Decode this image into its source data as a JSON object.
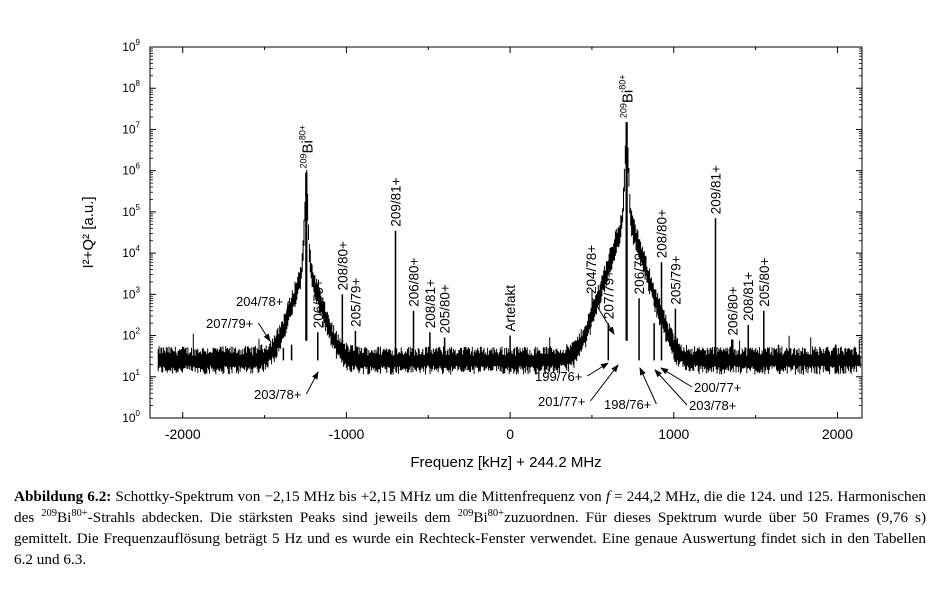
{
  "chart_data": {
    "type": "line",
    "xlabel": "Frequenz [kHz] + 244.2 MHz",
    "ylabel": "I²+Q² [a.u.]",
    "xlim": [
      -2200,
      2150
    ],
    "ylim": [
      1,
      1000000000
    ],
    "yscale": "log",
    "x_ticks": [
      -2000,
      -1000,
      0,
      1000,
      2000
    ],
    "x_tick_labels": [
      "-2000",
      "-1000",
      "0",
      "1000",
      "2000"
    ],
    "y_ticks": [
      1,
      10,
      100,
      1000,
      10000,
      100000,
      1000000,
      10000000,
      100000000,
      1000000000
    ],
    "y_tick_base": "10",
    "y_tick_exponents": [
      "0",
      "1",
      "2",
      "3",
      "4",
      "5",
      "6",
      "7",
      "8",
      "9"
    ],
    "noise_floor": 25,
    "main_peaks": [
      {
        "x": -1245,
        "y": 900000,
        "label_sup": "209",
        "label_main": "Bi",
        "label_sup2": "80+"
      },
      {
        "x": 712,
        "y": 15000000,
        "label_sup": "209",
        "label_main": "Bi",
        "label_sup2": "80+"
      }
    ],
    "peaks": [
      {
        "x": -1385,
        "y": 50
      },
      {
        "x": -1335,
        "y": 60
      },
      {
        "x": -1175,
        "y": 120,
        "label": "206/79+"
      },
      {
        "x": -1025,
        "y": 1000,
        "label": "208/80+"
      },
      {
        "x": -945,
        "y": 130,
        "label": "205/79+"
      },
      {
        "x": -700,
        "y": 35000,
        "label": "209/81+"
      },
      {
        "x": -590,
        "y": 400,
        "label": "206/80+"
      },
      {
        "x": -490,
        "y": 120,
        "label": "208/81+"
      },
      {
        "x": -400,
        "y": 90,
        "label": "205/80+"
      },
      {
        "x": 0,
        "y": 100,
        "label": "Artefakt"
      },
      {
        "x": 600,
        "y": 200,
        "label": "207/79+"
      },
      {
        "x": 788,
        "y": 800,
        "label": "206/79+"
      },
      {
        "x": 880,
        "y": 200
      },
      {
        "x": 925,
        "y": 6000,
        "label": "208/80+"
      },
      {
        "x": 1010,
        "y": 450,
        "label": "205/79+"
      },
      {
        "x": 1255,
        "y": 70000,
        "label": "209/81+"
      },
      {
        "x": 1360,
        "y": 80,
        "label": "206/80+"
      },
      {
        "x": 1455,
        "y": 180,
        "label": "208/81+"
      },
      {
        "x": 1550,
        "y": 400,
        "label": "205/80+"
      },
      {
        "x": 1640,
        "y": 60
      },
      {
        "x": 1990,
        "y": 60
      }
    ],
    "annotations": [
      {
        "text": "204/78+",
        "tx": 236,
        "ty": 306,
        "ax": 283,
        "ay": 338
      },
      {
        "text": "207/79+",
        "tx": 206,
        "ty": 328,
        "ax": 270,
        "ay": 341
      },
      {
        "text": "203/78+",
        "tx": 254,
        "ty": 399,
        "ax": 318,
        "ay": 372
      },
      {
        "text": "204/78+",
        "tx": 596,
        "ty": 266,
        "ax": 614,
        "ay": 334,
        "vertical": true
      },
      {
        "text": "199/76+",
        "tx": 535,
        "ty": 381,
        "ax": 608,
        "ay": 363
      },
      {
        "text": "201/77+",
        "tx": 538,
        "ty": 406,
        "ax": 618,
        "ay": 365
      },
      {
        "text": "198/76+",
        "tx": 604,
        "ty": 409,
        "ax": 640,
        "ay": 368
      },
      {
        "text": "200/77+",
        "tx": 694,
        "ty": 392,
        "ax": 661,
        "ay": 368
      },
      {
        "text": "203/78+",
        "tx": 689,
        "ty": 410,
        "ax": 655,
        "ay": 370
      }
    ]
  },
  "caption": {
    "label": "Abbildung 6.2:",
    "p1": " Schottky-Spektrum von −2,15 MHz bis +2,15 MHz um die Mittenfrequenz von ",
    "f_symbol": "f",
    "p2": " = 244,2 MHz, die die 124. und 125. Harmonischen des ",
    "iso_mass": "209",
    "iso_elem": "Bi",
    "iso_charge": "80+",
    "p3": "-Strahls abdecken. Die stärksten Peaks sind jeweils dem ",
    "iso_mass2": "209",
    "iso_elem2": "Bi",
    "iso_charge2": "80+",
    "p4": "zuzuordnen. Für dieses Spektrum wurde über 50 Frames (9,76 s) gemittelt. Die Frequenzauflösung beträgt 5 Hz und es wurde ein Rechteck-Fenster verwendet. Eine genaue Auswertung findet sich in den Tabellen 6.2 und 6.3."
  }
}
